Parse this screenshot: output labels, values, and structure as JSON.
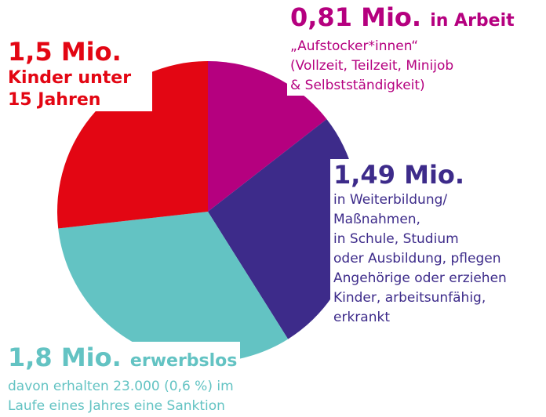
{
  "chart_data": {
    "type": "pie",
    "categories": [
      "in Arbeit",
      null,
      "erwerbslos",
      "Kinder unter 15 Jahren"
    ],
    "values": [
      0.81,
      1.49,
      1.8,
      1.5
    ],
    "value_labels": [
      "0,81 Mio.",
      "1,49 Mio.",
      "1,8 Mio.",
      "1,5 Mio."
    ],
    "colors": [
      "#b5007f",
      "#3d2b8a",
      "#63c3c3",
      "#e30613"
    ],
    "details": [
      [
        "„Aufstocker*innen“",
        "(Vollzeit, Teilzeit, Minijob",
        "& Selbstständigkeit)"
      ],
      [
        "in Weiterbildung/",
        "Maßnahmen,",
        "in Schule, Studium",
        "oder Ausbildung, pflegen",
        "Angehörige oder erziehen",
        "Kinder, arbeitsunfähig,",
        "erkrankt"
      ],
      [
        "davon erhalten 23.000 (0,6 %) im",
        "Laufe eines Jahres eine Sanktion"
      ],
      []
    ]
  }
}
